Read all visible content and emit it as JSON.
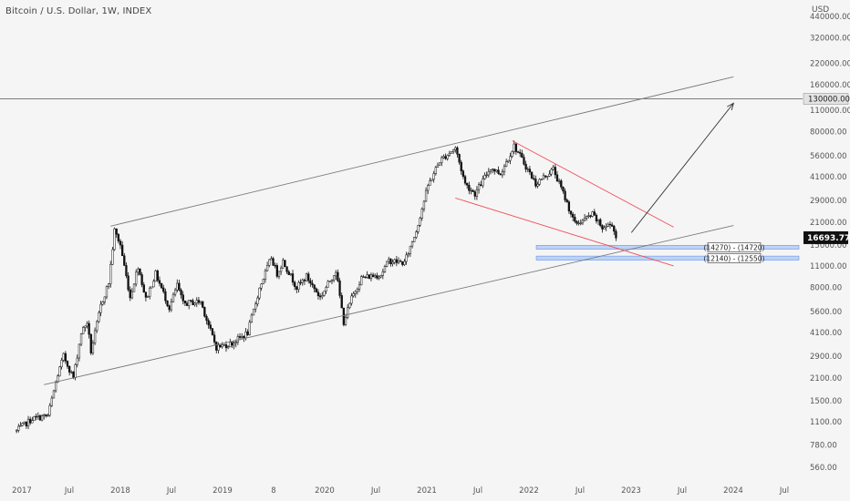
{
  "header": {
    "symbol_title": "Bitcoin / U.S. Dollar, 1W, INDEX",
    "currency": "USD"
  },
  "colors": {
    "background": "#f5f5f5",
    "candle": "#111111",
    "channel_line": "#7a7a7a",
    "wedge_line": "#f0505a",
    "zone_fill": "#b9d0f5",
    "zone_border": "#5b8def",
    "axis_text": "#555555"
  },
  "chart_data": {
    "type": "candlestick",
    "title": "Bitcoin / U.S. Dollar, 1W, INDEX",
    "y_scale": "log",
    "y_unit": "USD",
    "x_ticks": [
      "2017",
      "Jul",
      "2018",
      "Jul",
      "2019",
      "8",
      "2020",
      "Jul",
      "2021",
      "Jul",
      "2022",
      "Jul",
      "2023",
      "Jul",
      "2024",
      "Jul"
    ],
    "y_ticks": [
      "440000.00",
      "320000.00",
      "220000.00",
      "160000.00",
      "110000.00",
      "80000.00",
      "56000.00",
      "41000.00",
      "29000.00",
      "21000.00",
      "15000.00",
      "11000.00",
      "8000.00",
      "5600.00",
      "4100.00",
      "2900.00",
      "2100.00",
      "1500.00",
      "1100.00",
      "780.00",
      "560.00"
    ],
    "price_path": [
      [
        "2016-12-26",
        960
      ],
      [
        "2017-02-20",
        1150
      ],
      [
        "2017-04-17",
        1200
      ],
      [
        "2017-05-22",
        2200
      ],
      [
        "2017-06-12",
        2900
      ],
      [
        "2017-07-17",
        2100
      ],
      [
        "2017-08-14",
        4100
      ],
      [
        "2017-09-04",
        4800
      ],
      [
        "2017-09-18",
        3100
      ],
      [
        "2017-10-23",
        6100
      ],
      [
        "2017-11-20",
        8600
      ],
      [
        "2017-12-11",
        18500
      ],
      [
        "2018-01-01",
        15000
      ],
      [
        "2018-02-05",
        6900
      ],
      [
        "2018-03-05",
        11000
      ],
      [
        "2018-04-02",
        6700
      ],
      [
        "2018-05-07",
        9800
      ],
      [
        "2018-06-25",
        5900
      ],
      [
        "2018-07-23",
        8300
      ],
      [
        "2018-08-13",
        6300
      ],
      [
        "2018-10-15",
        6500
      ],
      [
        "2018-11-19",
        4200
      ],
      [
        "2018-12-10",
        3300
      ],
      [
        "2019-02-04",
        3500
      ],
      [
        "2019-04-01",
        4100
      ],
      [
        "2019-05-13",
        7900
      ],
      [
        "2019-06-24",
        12500
      ],
      [
        "2019-07-15",
        9800
      ],
      [
        "2019-08-05",
        11800
      ],
      [
        "2019-09-23",
        8000
      ],
      [
        "2019-10-28",
        9400
      ],
      [
        "2019-12-16",
        6900
      ],
      [
        "2020-02-10",
        10300
      ],
      [
        "2020-03-09",
        4800
      ],
      [
        "2020-04-06",
        6800
      ],
      [
        "2020-05-11",
        9200
      ],
      [
        "2020-07-20",
        9700
      ],
      [
        "2020-08-17",
        11900
      ],
      [
        "2020-10-12",
        11500
      ],
      [
        "2020-11-23",
        18500
      ],
      [
        "2021-01-04",
        36000
      ],
      [
        "2021-02-15",
        52000
      ],
      [
        "2021-04-12",
        63000
      ],
      [
        "2021-05-17",
        37000
      ],
      [
        "2021-06-21",
        32000
      ],
      [
        "2021-08-16",
        47000
      ],
      [
        "2021-09-20",
        43000
      ],
      [
        "2021-11-08",
        65000
      ],
      [
        "2021-12-20",
        48000
      ],
      [
        "2022-01-24",
        37000
      ],
      [
        "2022-03-28",
        46000
      ],
      [
        "2022-05-09",
        30000
      ],
      [
        "2022-06-13",
        20500
      ],
      [
        "2022-07-11",
        21500
      ],
      [
        "2022-08-15",
        23500
      ],
      [
        "2022-09-19",
        19300
      ],
      [
        "2022-10-24",
        20500
      ],
      [
        "2022-11-07",
        16700
      ]
    ],
    "last_price": "16693.77",
    "horizontal_line": {
      "value": 130000,
      "label": "130000.00"
    },
    "support_zones": [
      {
        "label": "(14270) - (14720)",
        "low": 14270,
        "high": 14720
      },
      {
        "label": "(12140) - (12550)",
        "low": 12140,
        "high": 12550
      }
    ],
    "channel": {
      "upper": {
        "from": [
          "2017-11-27",
          19800
        ],
        "to": [
          "2024-01-01",
          180000
        ]
      },
      "lower": {
        "from": [
          "2017-04-03",
          1900
        ],
        "to": [
          "2024-01-01",
          20000
        ]
      }
    },
    "wedge": {
      "upper": {
        "from": [
          "2021-11-01",
          70000
        ],
        "to": [
          "2023-06-01",
          19500
        ]
      },
      "lower": {
        "from": [
          "2021-04-12",
          30000
        ],
        "to": [
          "2023-06-01",
          11000
        ]
      }
    },
    "projection_arrow": {
      "from": [
        "2023-01-01",
        18000
      ],
      "to": [
        "2024-01-01",
        122000
      ]
    }
  }
}
